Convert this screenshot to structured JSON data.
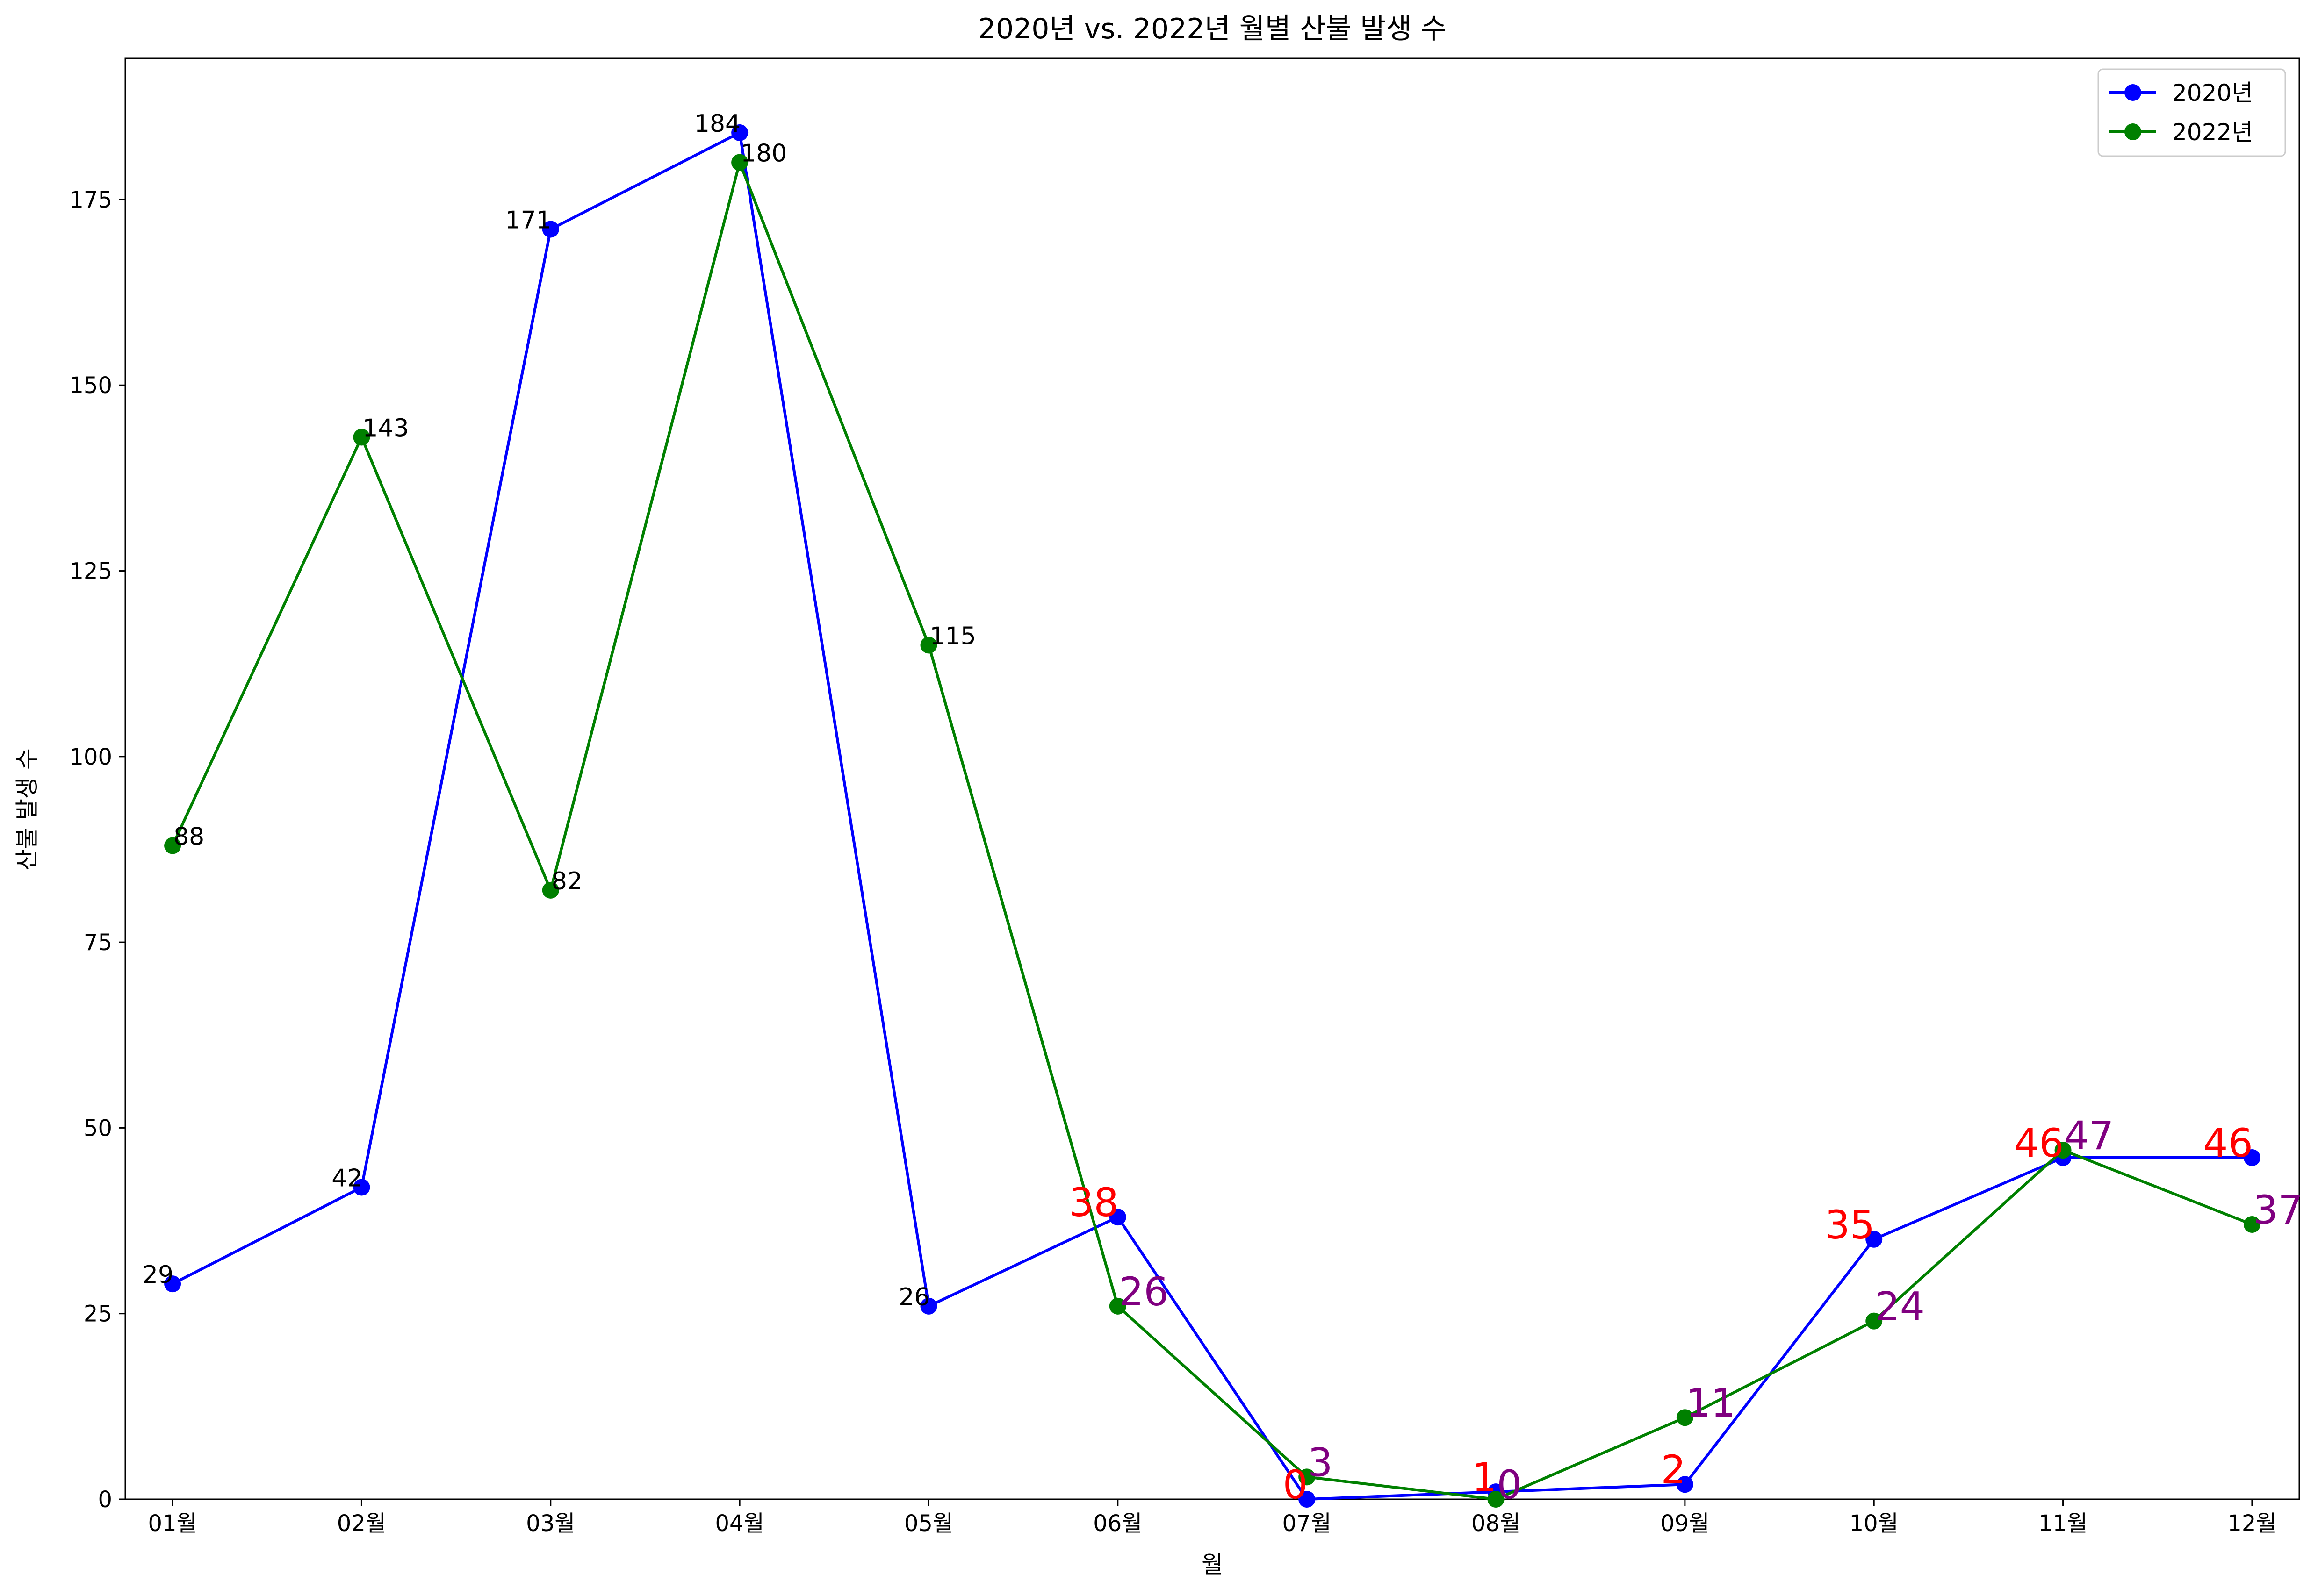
{
  "chart_data": {
    "type": "line",
    "title": "2020년 vs. 2022년 월별 산불 발생 수",
    "xlabel": "월",
    "ylabel": "산불 발생 수",
    "categories": [
      "01월",
      "02월",
      "03월",
      "04월",
      "05월",
      "06월",
      "07월",
      "08월",
      "09월",
      "10월",
      "11월",
      "12월"
    ],
    "ylim": [
      0,
      194
    ],
    "yticks": [
      0,
      25,
      50,
      75,
      100,
      125,
      150,
      175
    ],
    "grid": false,
    "legend_position": "top-right",
    "series": [
      {
        "name": "2020년",
        "color": "#0000ff",
        "values": [
          29,
          42,
          171,
          184,
          26,
          38,
          0,
          1,
          2,
          35,
          46,
          46
        ],
        "labels": [
          "29",
          "42",
          "171",
          "184",
          "26",
          "38",
          "0",
          "1",
          "2",
          "35",
          "46",
          "46"
        ],
        "label_colors": [
          "#000000",
          "#000000",
          "#000000",
          "#000000",
          "#000000",
          "#ff0000",
          "#ff0000",
          "#ff0000",
          "#ff0000",
          "#ff0000",
          "#ff0000",
          "#ff0000"
        ],
        "label_side": "left"
      },
      {
        "name": "2022년",
        "color": "#008000",
        "values": [
          88,
          143,
          82,
          180,
          115,
          26,
          3,
          0,
          11,
          24,
          47,
          37
        ],
        "labels": [
          "88",
          "143",
          "82",
          "180",
          "115",
          "26",
          "3",
          "0",
          "11",
          "24",
          "47",
          "37"
        ],
        "label_colors": [
          "#000000",
          "#000000",
          "#000000",
          "#000000",
          "#000000",
          "#800080",
          "#800080",
          "#800080",
          "#800080",
          "#800080",
          "#800080",
          "#800080"
        ],
        "label_side": "right"
      }
    ]
  }
}
